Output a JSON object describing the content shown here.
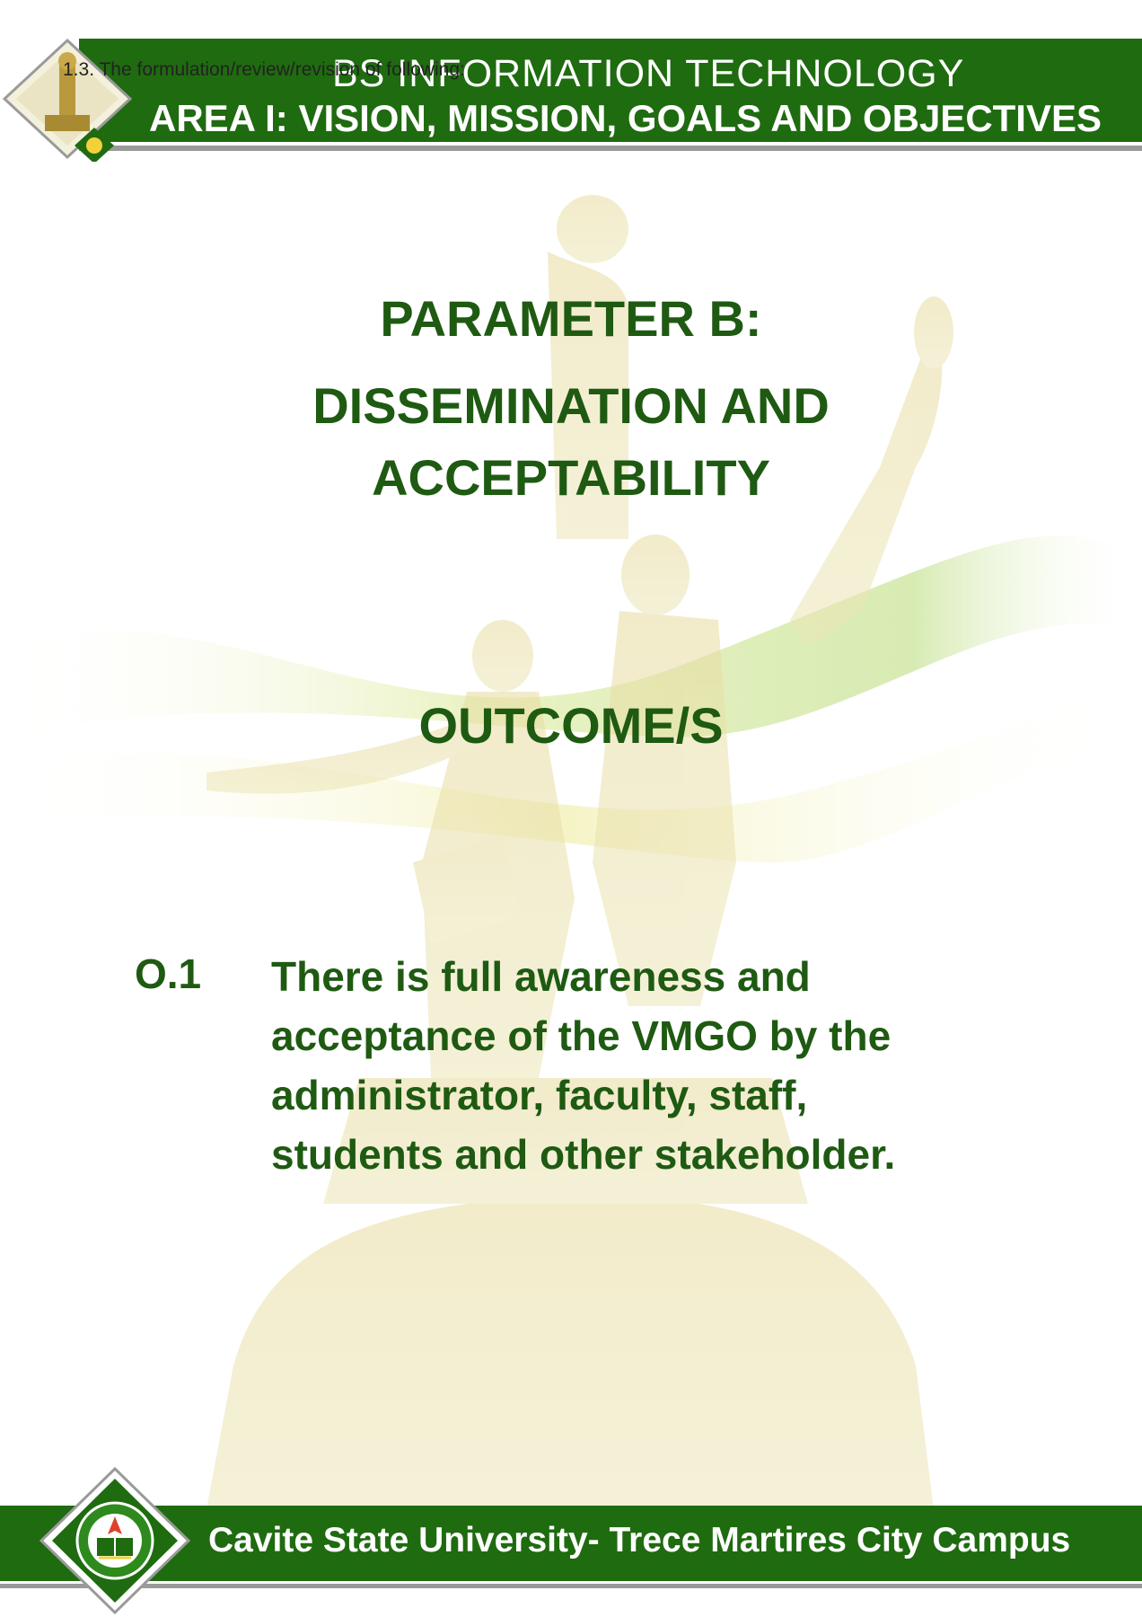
{
  "header": {
    "title": "BS INFORMATION TECHNOLOGY",
    "subtitle": "AREA I: VISION, MISSION, GOALS AND OBJECTIVES",
    "overlay_note": "1.3. The formulation/review/revision of following:"
  },
  "main": {
    "parameter_title": "PARAMETER B:",
    "parameter_subtitle_line1": "DISSEMINATION AND",
    "parameter_subtitle_line2": "ACCEPTABILITY",
    "outcome_heading": "OUTCOME/S",
    "outcomes": [
      {
        "code": "O.1",
        "lines": [
          "There is full awareness and",
          "acceptance of the VMGO by the",
          "administrator, faculty, staff,",
          "students and other stakeholder."
        ]
      }
    ]
  },
  "footer": {
    "text": "Cavite State University- Trece Martires City Campus"
  },
  "icons": {
    "top_logo": "statue-emblem-icon",
    "bottom_logo": "university-seal-icon"
  },
  "colors": {
    "brand_green": "#1f6b10",
    "heading_green": "#1f5a12",
    "rule_gray": "#9a9a9a"
  }
}
